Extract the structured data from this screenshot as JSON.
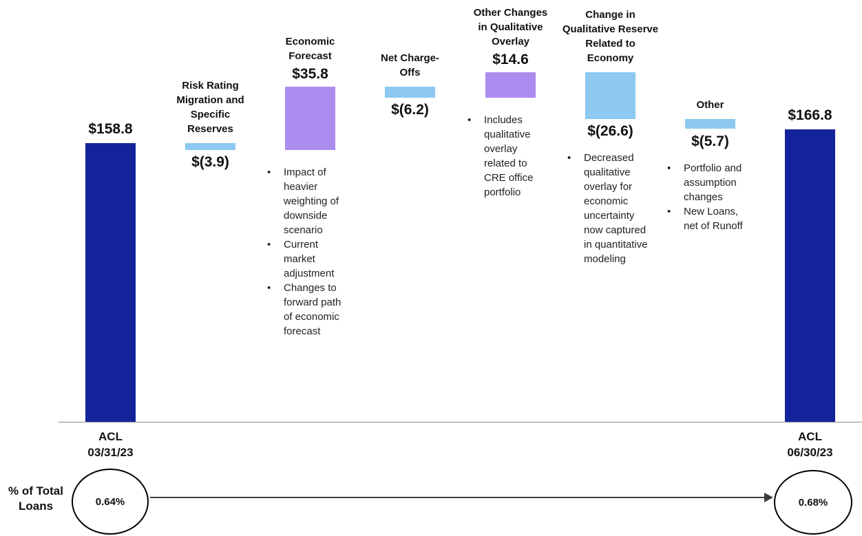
{
  "chart_data": {
    "type": "bar",
    "subtype": "waterfall",
    "value_prefix": "$",
    "baseline_value": 0,
    "colors": {
      "total": "#13239c",
      "increase": "#ad8cef",
      "decrease": "#8dc9f1"
    },
    "steps": [
      {
        "key": "acl-03-31-23",
        "label": "",
        "value": 158.8,
        "value_label": "$158.8",
        "bar_type": "total",
        "axis_label": "ACL\n03/31/23",
        "bullets": []
      },
      {
        "key": "risk-rating-migration",
        "label": "Risk Rating\nMigration and\nSpecific\nReserves",
        "value": -3.9,
        "value_label": "$(3.9)",
        "bar_type": "decrease",
        "axis_label": "",
        "bullets": []
      },
      {
        "key": "economic-forecast",
        "label": "Economic\nForecast",
        "value": 35.8,
        "value_label": "$35.8",
        "bar_type": "increase",
        "axis_label": "",
        "bullets": [
          "Impact of\nheavier\nweighting of\ndownside\nscenario",
          "Current\nmarket\nadjustment",
          "Changes to\nforward path\nof economic\nforecast"
        ]
      },
      {
        "key": "net-charge-offs",
        "label": "Net Charge-\nOffs",
        "value": -6.2,
        "value_label": "$(6.2)",
        "bar_type": "decrease",
        "axis_label": "",
        "bullets": []
      },
      {
        "key": "other-changes-qualitative-overlay",
        "label": "Other Changes\nin Qualitative\nOverlay",
        "value": 14.6,
        "value_label": "$14.6",
        "bar_type": "increase",
        "axis_label": "",
        "bullets": [
          "Includes\nqualitative\noverlay\nrelated to\nCRE office\nportfolio"
        ]
      },
      {
        "key": "change-qualitative-reserve-economy",
        "label": "Change in\nQualitative Reserve\nRelated to\nEconomy",
        "value": -26.6,
        "value_label": "$(26.6)",
        "bar_type": "decrease",
        "axis_label": "",
        "bullets": [
          "Decreased\nqualitative\noverlay for\neconomic\nuncertainty\nnow captured\nin quantitative\nmodeling"
        ]
      },
      {
        "key": "other",
        "label": "Other",
        "value": -5.7,
        "value_label": "$(5.7)",
        "bar_type": "decrease",
        "axis_label": "",
        "bullets": [
          "Portfolio and\nassumption\nchanges",
          "New Loans,\nnet of Runoff"
        ]
      },
      {
        "key": "acl-06-30-23",
        "label": "",
        "value": 166.8,
        "value_label": "$166.8",
        "bar_type": "total",
        "axis_label": "ACL\n06/30/23",
        "bullets": []
      }
    ]
  },
  "footer": {
    "metric_label": "% of Total\nLoans",
    "start_value": "0.64%",
    "end_value": "0.68%"
  }
}
